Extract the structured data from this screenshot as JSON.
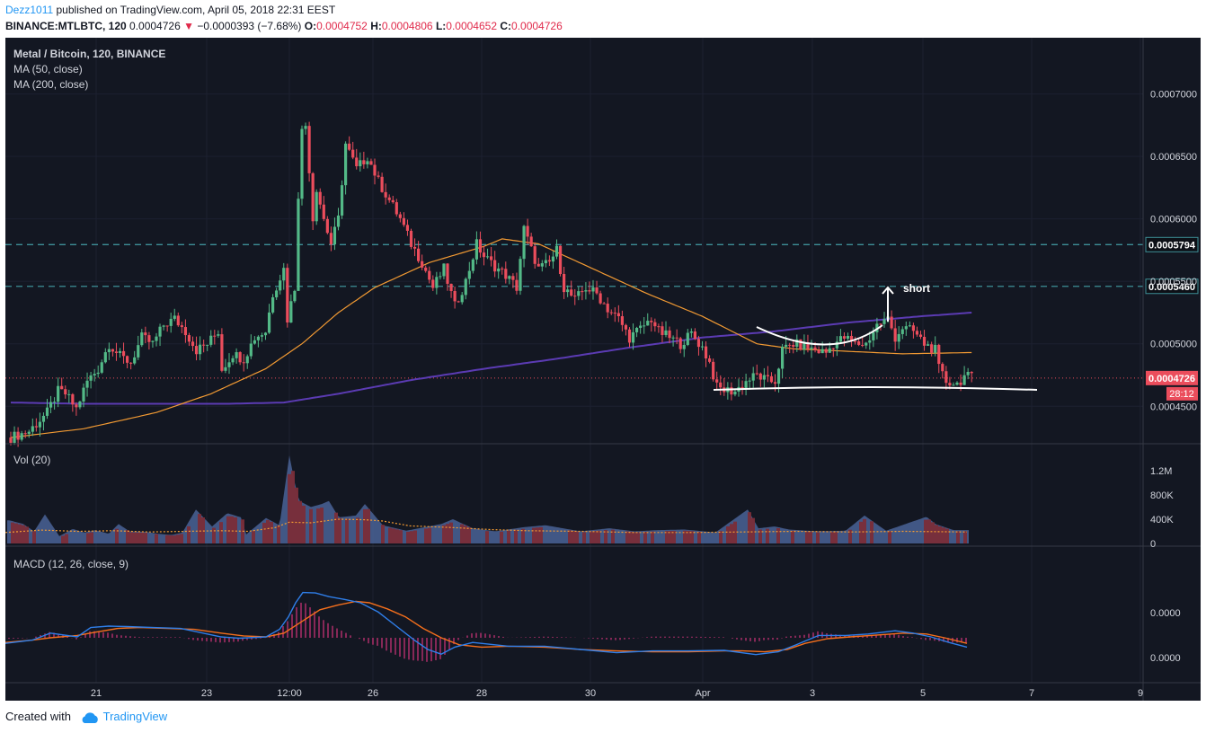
{
  "header": {
    "author": "Dezz1011",
    "published": "published on TradingView.com, April 05, 2018 22:31 EEST",
    "symbol": "BINANCE:MTLBTC, 120",
    "last": "0.0004726",
    "change_arrow": "▼",
    "change": "−0.0000393 (−7.68%)",
    "o_label": "O:",
    "o": "0.0004752",
    "h_label": "H:",
    "h": "0.0004806",
    "l_label": "L:",
    "l": "0.0004652",
    "c_label": "C:",
    "c": "0.0004726"
  },
  "legend": {
    "title": "Metal / Bitcoin, 120, BINANCE",
    "ma50": "MA (50, close)",
    "ma200": "MA (200, close)",
    "vol": "Vol (20)",
    "macd": "MACD (12, 26, close, 9)"
  },
  "annotations": {
    "short": "short",
    "countdown": "28:12"
  },
  "footer": {
    "created": "Created with",
    "brand": "TradingView"
  },
  "colors": {
    "background": "#131722",
    "up": "#53b987",
    "down": "#eb4d5c",
    "ma50": "#f29a33",
    "ma200": "#5b3bb3",
    "macd": "#2f7ee8",
    "signal": "#f56f1c",
    "hline": "#3e8f97",
    "drawing": "#ffffff"
  },
  "chart_data": [
    {
      "type": "candlestick",
      "title": "Metal / Bitcoin, 120, BINANCE",
      "x_ticks": [
        "21",
        "23",
        "12:00",
        "26",
        "28",
        "30",
        "Apr",
        "3",
        "5",
        "7",
        "9"
      ],
      "y_ticks": [
        "0.0004500",
        "0.0005000",
        "0.0005500",
        "0.0006000",
        "0.0006500",
        "0.0007000"
      ],
      "ylim": [
        0.00042,
        0.000745
      ],
      "horizontal_lines": [
        {
          "value": 0.0005794,
          "label": "0.0005794"
        },
        {
          "value": 0.000546,
          "label": "0.0005460"
        }
      ],
      "current_price": {
        "value": 0.0004726,
        "label": "0.0004726"
      },
      "close_path": [
        [
          0,
          0.000425
        ],
        [
          5,
          0.00043
        ],
        [
          10,
          0.000445
        ],
        [
          13,
          0.000462
        ],
        [
          15,
          0.00046
        ],
        [
          18,
          0.000448
        ],
        [
          21,
          0.00047
        ],
        [
          24,
          0.00048
        ],
        [
          27,
          0.0005
        ],
        [
          30,
          0.00049
        ],
        [
          33,
          0.000485
        ],
        [
          36,
          0.000505
        ],
        [
          39,
          0.0005
        ],
        [
          42,
          0.000515
        ],
        [
          45,
          0.00052
        ],
        [
          48,
          0.00051
        ],
        [
          51,
          0.000495
        ],
        [
          54,
          0.0005
        ],
        [
          57,
          0.00051
        ],
        [
          58,
          0.00048
        ],
        [
          61,
          0.000492
        ],
        [
          64,
          0.000488
        ],
        [
          67,
          0.000505
        ],
        [
          70,
          0.00051
        ],
        [
          72,
          0.00054
        ],
        [
          75,
          0.00056
        ],
        [
          76,
          0.00052
        ],
        [
          78,
          0.000545
        ],
        [
          79,
          0.00062
        ],
        [
          80,
          0.00067
        ],
        [
          81,
          0.000675
        ],
        [
          82,
          0.00064
        ],
        [
          83,
          0.0006
        ],
        [
          84,
          0.000625
        ],
        [
          86,
          0.0006
        ],
        [
          88,
          0.00058
        ],
        [
          90,
          0.0006
        ],
        [
          92,
          0.00066
        ],
        [
          95,
          0.00064
        ],
        [
          98,
          0.00065
        ],
        [
          101,
          0.00063
        ],
        [
          104,
          0.000615
        ],
        [
          107,
          0.0006
        ],
        [
          110,
          0.00058
        ],
        [
          113,
          0.000565
        ],
        [
          116,
          0.000545
        ],
        [
          119,
          0.00056
        ],
        [
          122,
          0.00053
        ],
        [
          125,
          0.00055
        ],
        [
          128,
          0.00058
        ],
        [
          130,
          0.00057
        ],
        [
          133,
          0.000562
        ],
        [
          136,
          0.000555
        ],
        [
          139,
          0.000545
        ],
        [
          141,
          0.000592
        ],
        [
          143,
          0.000575
        ],
        [
          145,
          0.00056
        ],
        [
          148,
          0.000565
        ],
        [
          150,
          0.000575
        ],
        [
          152,
          0.000545
        ],
        [
          155,
          0.000535
        ],
        [
          158,
          0.000545
        ],
        [
          161,
          0.00054
        ],
        [
          164,
          0.000528
        ],
        [
          167,
          0.00052
        ],
        [
          170,
          0.000505
        ],
        [
          173,
          0.000512
        ],
        [
          176,
          0.00052
        ],
        [
          178,
          0.00051
        ],
        [
          181,
          0.000505
        ],
        [
          184,
          0.0005
        ],
        [
          187,
          0.000508
        ],
        [
          190,
          0.000497
        ],
        [
          192,
          0.000485
        ],
        [
          194,
          0.000465
        ],
        [
          196,
          0.000463
        ],
        [
          199,
          0.000462
        ],
        [
          202,
          0.00047
        ],
        [
          205,
          0.000475
        ],
        [
          208,
          0.00047
        ],
        [
          210,
          0.00047
        ],
        [
          212,
          0.000495
        ],
        [
          215,
          0.0005
        ],
        [
          218,
          0.000498
        ],
        [
          221,
          0.000495
        ],
        [
          224,
          0.000493
        ],
        [
          226,
          0.0005
        ],
        [
          229,
          0.000505
        ],
        [
          232,
          0.0005
        ],
        [
          235,
          0.0005
        ],
        [
          238,
          0.000515
        ],
        [
          241,
          0.00052
        ],
        [
          243,
          0.000505
        ],
        [
          245,
          0.000513
        ],
        [
          248,
          0.00051
        ],
        [
          251,
          0.0005
        ],
        [
          254,
          0.000495
        ],
        [
          255,
          0.00048
        ],
        [
          257,
          0.00047
        ],
        [
          260,
          0.000468
        ],
        [
          262,
          0.000474
        ],
        [
          264,
          0.000473
        ]
      ],
      "ma50_path": [
        [
          0,
          0.000425
        ],
        [
          20,
          0.000432
        ],
        [
          40,
          0.000445
        ],
        [
          55,
          0.00046
        ],
        [
          70,
          0.00048
        ],
        [
          80,
          0.0005
        ],
        [
          90,
          0.000525
        ],
        [
          100,
          0.000545
        ],
        [
          115,
          0.000565
        ],
        [
          130,
          0.000578
        ],
        [
          135,
          0.000584
        ],
        [
          145,
          0.00058
        ],
        [
          160,
          0.00056
        ],
        [
          175,
          0.00054
        ],
        [
          190,
          0.000522
        ],
        [
          205,
          0.0005
        ],
        [
          215,
          0.000496
        ],
        [
          230,
          0.000494
        ],
        [
          245,
          0.000492
        ],
        [
          264,
          0.000493
        ]
      ],
      "ma200_path": [
        [
          0,
          0.000453
        ],
        [
          20,
          0.000452
        ],
        [
          40,
          0.000452
        ],
        [
          60,
          0.000452
        ],
        [
          75,
          0.000453
        ],
        [
          90,
          0.00046
        ],
        [
          110,
          0.000471
        ],
        [
          130,
          0.00048
        ],
        [
          150,
          0.000488
        ],
        [
          170,
          0.000497
        ],
        [
          190,
          0.000505
        ],
        [
          210,
          0.00051
        ],
        [
          230,
          0.000517
        ],
        [
          250,
          0.000522
        ],
        [
          264,
          0.000525
        ]
      ],
      "annotations": [
        "short"
      ]
    },
    {
      "type": "bar",
      "title": "Vol (20)",
      "y_ticks": [
        "0",
        "400K",
        "800K",
        "1.2M"
      ],
      "ylim": [
        0,
        1450000
      ],
      "spike_points": [
        [
          5,
          380000
        ],
        [
          20,
          320000
        ],
        [
          32,
          200000
        ],
        [
          44,
          480000
        ],
        [
          60,
          120000
        ],
        [
          75,
          240000
        ],
        [
          88,
          180000
        ],
        [
          100,
          220000
        ],
        [
          115,
          160000
        ],
        [
          126,
          320000
        ],
        [
          138,
          200000
        ],
        [
          156,
          190000
        ],
        [
          170,
          160000
        ],
        [
          185,
          140000
        ],
        [
          197,
          180000
        ],
        [
          212,
          560000
        ],
        [
          230,
          280000
        ],
        [
          247,
          500000
        ],
        [
          262,
          430000
        ],
        [
          268,
          150000
        ],
        [
          290,
          420000
        ],
        [
          305,
          300000
        ],
        [
          316,
          1450000
        ],
        [
          322,
          1000000
        ],
        [
          327,
          700000
        ],
        [
          340,
          600000
        ],
        [
          352,
          650000
        ],
        [
          360,
          700000
        ],
        [
          371,
          430000
        ],
        [
          390,
          460000
        ],
        [
          400,
          650000
        ],
        [
          420,
          300000
        ],
        [
          446,
          210000
        ],
        [
          485,
          320000
        ],
        [
          498,
          400000
        ],
        [
          520,
          250000
        ],
        [
          545,
          200000
        ],
        [
          578,
          270000
        ],
        [
          601,
          300000
        ],
        [
          640,
          200000
        ],
        [
          672,
          250000
        ],
        [
          700,
          200000
        ],
        [
          726,
          220000
        ],
        [
          756,
          230000
        ],
        [
          790,
          180000
        ],
        [
          826,
          560000
        ],
        [
          838,
          250000
        ],
        [
          856,
          280000
        ],
        [
          872,
          230000
        ],
        [
          902,
          200000
        ],
        [
          935,
          210000
        ],
        [
          956,
          460000
        ],
        [
          980,
          210000
        ],
        [
          1025,
          440000
        ],
        [
          1035,
          320000
        ],
        [
          1055,
          220000
        ],
        [
          1070,
          220000
        ]
      ],
      "ma_path": [
        [
          0,
          180000
        ],
        [
          40,
          220000
        ],
        [
          80,
          200000
        ],
        [
          120,
          210000
        ],
        [
          160,
          190000
        ],
        [
          200,
          200000
        ],
        [
          240,
          210000
        ],
        [
          270,
          200000
        ],
        [
          300,
          260000
        ],
        [
          316,
          350000
        ],
        [
          340,
          340000
        ],
        [
          370,
          400000
        ],
        [
          400,
          390000
        ],
        [
          420,
          370000
        ],
        [
          450,
          290000
        ],
        [
          500,
          260000
        ],
        [
          540,
          230000
        ],
        [
          580,
          210000
        ],
        [
          640,
          200000
        ],
        [
          700,
          180000
        ],
        [
          760,
          180000
        ],
        [
          820,
          190000
        ],
        [
          880,
          200000
        ],
        [
          940,
          190000
        ],
        [
          1000,
          200000
        ],
        [
          1070,
          190000
        ]
      ]
    },
    {
      "type": "line",
      "title": "MACD (12, 26, close, 9)",
      "y_ticks": [
        "0.0000",
        "0.0000"
      ],
      "ylim": [
        -1,
        1
      ],
      "macd_path": [
        [
          0,
          -0.12
        ],
        [
          30,
          -0.05
        ],
        [
          50,
          0.1
        ],
        [
          80,
          0.02
        ],
        [
          95,
          0.22
        ],
        [
          115,
          0.25
        ],
        [
          135,
          0.24
        ],
        [
          165,
          0.22
        ],
        [
          195,
          0.2
        ],
        [
          220,
          0.1
        ],
        [
          240,
          0.02
        ],
        [
          260,
          -0.01
        ],
        [
          290,
          0.02
        ],
        [
          305,
          0.18
        ],
        [
          315,
          0.45
        ],
        [
          323,
          0.75
        ],
        [
          331,
          0.97
        ],
        [
          345,
          0.96
        ],
        [
          360,
          0.88
        ],
        [
          378,
          0.82
        ],
        [
          395,
          0.75
        ],
        [
          415,
          0.55
        ],
        [
          435,
          0.25
        ],
        [
          455,
          -0.05
        ],
        [
          470,
          -0.25
        ],
        [
          485,
          -0.35
        ],
        [
          500,
          -0.2
        ],
        [
          520,
          -0.1
        ],
        [
          560,
          -0.18
        ],
        [
          600,
          -0.18
        ],
        [
          640,
          -0.25
        ],
        [
          680,
          -0.32
        ],
        [
          720,
          -0.28
        ],
        [
          760,
          -0.28
        ],
        [
          800,
          -0.27
        ],
        [
          835,
          -0.36
        ],
        [
          860,
          -0.3
        ],
        [
          880,
          -0.15
        ],
        [
          905,
          0.05
        ],
        [
          935,
          0.05
        ],
        [
          960,
          0.08
        ],
        [
          990,
          0.15
        ],
        [
          1010,
          0.1
        ],
        [
          1030,
          0.02
        ],
        [
          1050,
          -0.1
        ],
        [
          1070,
          -0.2
        ]
      ],
      "signal_path": [
        [
          0,
          -0.1
        ],
        [
          30,
          -0.05
        ],
        [
          50,
          0.0
        ],
        [
          80,
          0.05
        ],
        [
          100,
          0.12
        ],
        [
          125,
          0.2
        ],
        [
          150,
          0.22
        ],
        [
          180,
          0.2
        ],
        [
          210,
          0.18
        ],
        [
          240,
          0.1
        ],
        [
          265,
          0.04
        ],
        [
          290,
          0.02
        ],
        [
          310,
          0.1
        ],
        [
          330,
          0.35
        ],
        [
          350,
          0.6
        ],
        [
          370,
          0.7
        ],
        [
          390,
          0.78
        ],
        [
          405,
          0.75
        ],
        [
          425,
          0.62
        ],
        [
          445,
          0.45
        ],
        [
          465,
          0.2
        ],
        [
          485,
          0.0
        ],
        [
          505,
          -0.15
        ],
        [
          530,
          -0.2
        ],
        [
          560,
          -0.18
        ],
        [
          600,
          -0.2
        ],
        [
          640,
          -0.25
        ],
        [
          680,
          -0.28
        ],
        [
          720,
          -0.3
        ],
        [
          760,
          -0.3
        ],
        [
          800,
          -0.28
        ],
        [
          820,
          -0.28
        ],
        [
          845,
          -0.3
        ],
        [
          870,
          -0.25
        ],
        [
          890,
          -0.12
        ],
        [
          915,
          -0.02
        ],
        [
          940,
          0.02
        ],
        [
          970,
          0.06
        ],
        [
          1000,
          0.1
        ],
        [
          1025,
          0.08
        ],
        [
          1045,
          0.0
        ],
        [
          1070,
          -0.12
        ]
      ]
    }
  ]
}
